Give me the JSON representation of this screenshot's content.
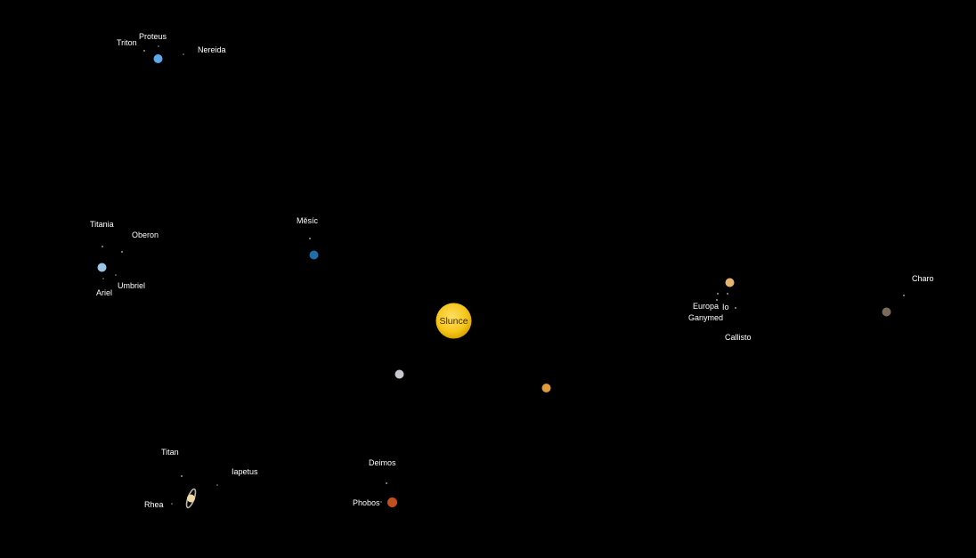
{
  "sun": {
    "name": "Slunce",
    "color": "#f5c518"
  },
  "planets": {
    "mercury": {
      "color": "#c8c8d0"
    },
    "venus": {
      "color": "#e09a3a"
    },
    "earth": {
      "color": "#1f6fa6",
      "moon": "Měsíc"
    },
    "mars": {
      "color": "#c2501c",
      "moons": [
        "Phobos",
        "Deimos"
      ]
    },
    "jupiter": {
      "color": "#e6b46e",
      "moons": [
        "Io",
        "Europa",
        "Ganymed",
        "Callisto"
      ]
    },
    "saturn": {
      "color": "#eed9a6",
      "ring_color": "#b9b2a0",
      "moons": [
        "Titan",
        "Rhea",
        "Iapetus"
      ]
    },
    "uranus": {
      "color": "#9ec4e4",
      "moons": [
        "Ariel",
        "Umbriel",
        "Titania",
        "Oberon"
      ]
    },
    "neptune": {
      "color": "#5aa9ee",
      "moons": [
        "Triton",
        "Proteus",
        "Nereida"
      ]
    },
    "pluto": {
      "color": "#7a6a5a",
      "moons": [
        "Charo"
      ]
    }
  },
  "labels": {
    "earth_moon": "Měsíc",
    "phobos": "Phobos",
    "deimos": "Deimos",
    "io": "Io",
    "europa": "Europa",
    "ganymed": "Ganymed",
    "callisto": "Callisto",
    "titan": "Titan",
    "rhea": "Rhea",
    "iapetus": "Iapetus",
    "ariel": "Ariel",
    "umbriel": "Umbriel",
    "titania": "Titania",
    "oberon": "Oberon",
    "triton": "Triton",
    "proteus": "Proteus",
    "nereida": "Nereida",
    "charo": "Charo"
  },
  "moon_color": "#9a9a9a"
}
